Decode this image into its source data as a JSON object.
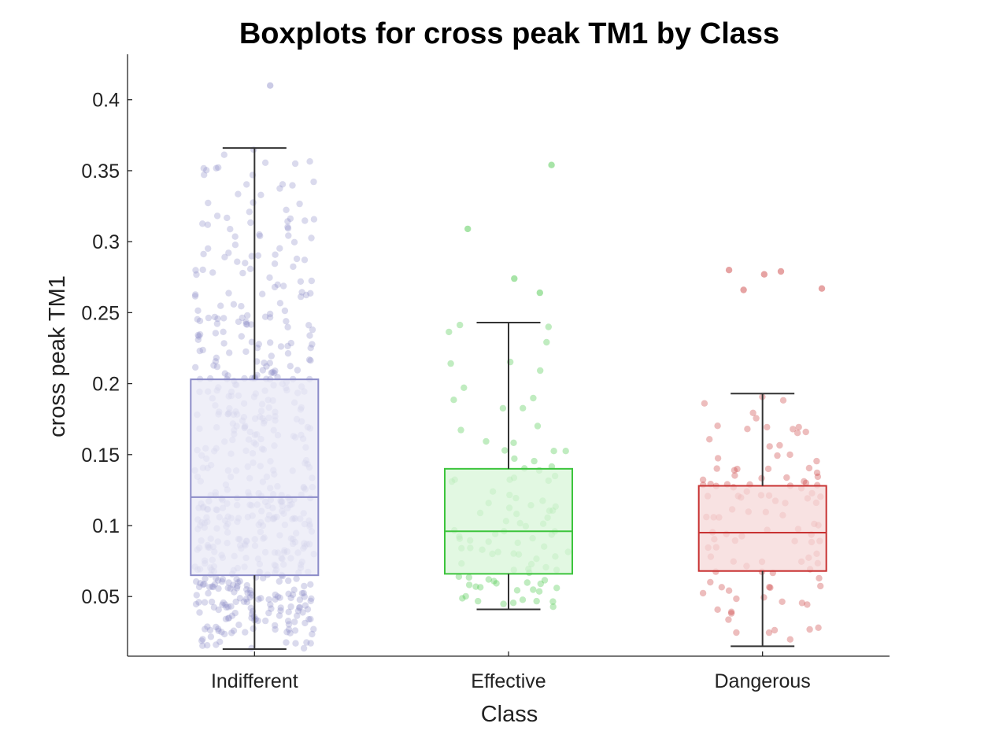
{
  "chart_data": {
    "type": "box",
    "title": "Boxplots for cross peak TM1 by Class",
    "xlabel": "Class",
    "ylabel": "cross peak TM1",
    "categories": [
      "Indifferent",
      "Effective",
      "Dangerous"
    ],
    "ylim": [
      0.008,
      0.432
    ],
    "yticks": [
      0.05,
      0.1,
      0.15,
      0.2,
      0.25,
      0.3,
      0.35,
      0.4
    ],
    "ytick_labels": [
      "0.05",
      "0.1",
      "0.15",
      "0.2",
      "0.25",
      "0.3",
      "0.35",
      "0.4"
    ],
    "grid": false,
    "series": [
      {
        "category": "Indifferent",
        "color": "#8b8bc8",
        "fill": "#e9e9f5",
        "whisker_low": 0.013,
        "q1": 0.065,
        "median": 0.12,
        "q3": 0.203,
        "whisker_high": 0.366,
        "outliers": [
          0.41
        ],
        "approx_points": 600
      },
      {
        "category": "Effective",
        "color": "#3cc43c",
        "fill": "#d8f5d8",
        "whisker_low": 0.041,
        "q1": 0.066,
        "median": 0.096,
        "q3": 0.14,
        "whisker_high": 0.243,
        "outliers": [
          0.354,
          0.309,
          0.274,
          0.264
        ],
        "approx_points": 100
      },
      {
        "category": "Dangerous",
        "color": "#c83232",
        "fill": "#f5d8d8",
        "whisker_low": 0.015,
        "q1": 0.068,
        "median": 0.095,
        "q3": 0.128,
        "whisker_high": 0.193,
        "outliers": [
          0.28,
          0.279,
          0.277,
          0.267,
          0.266
        ],
        "approx_points": 110
      }
    ]
  }
}
